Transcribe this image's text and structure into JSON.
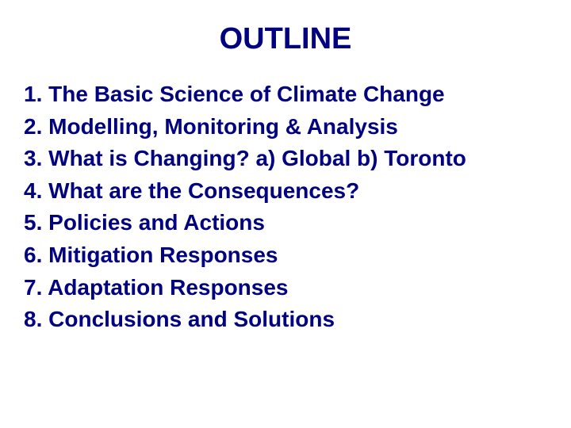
{
  "slide": {
    "title": "OUTLINE",
    "title_color": "#000080",
    "title_fontsize": 38,
    "item_color": "#000080",
    "item_fontsize": 28,
    "background_color": "#ffffff",
    "items": [
      {
        "number": "1.",
        "text": "The Basic Science of Climate Change",
        "indent": false
      },
      {
        "number": "2.",
        "text": "Modelling, Monitoring & Analysis",
        "indent": false
      },
      {
        "number": "3.",
        "text": " What is Changing? a) Global b) Toronto",
        "indent": false
      },
      {
        "number": "4.",
        "text": " What are the Consequences?",
        "indent": false
      },
      {
        "number": "5.",
        "text": " Policies and Actions",
        "indent": false
      },
      {
        "number": "6.",
        "text": " Mitigation Responses",
        "indent": false
      },
      {
        "number": "7.",
        "text": " Adaptation Responses",
        "indent": false
      },
      {
        "number": "8.",
        "text": " Conclusions and Solutions",
        "indent": false
      }
    ]
  }
}
